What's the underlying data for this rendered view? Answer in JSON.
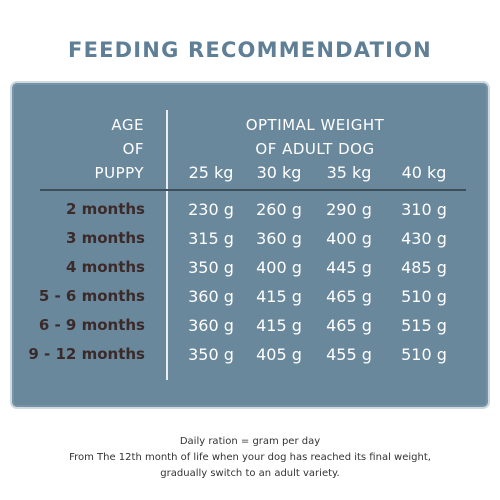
{
  "title": "FEEDING RECOMMENDATION",
  "header": {
    "age_lines": [
      "AGE",
      "OF",
      "PUPPY"
    ],
    "weight_lines": [
      "OPTIMAL WEIGHT",
      "OF ADULT DOG"
    ],
    "weights": [
      "25 kg",
      "30 kg",
      "35 kg",
      "40 kg"
    ]
  },
  "rows": [
    {
      "age": "2 months",
      "values": [
        "230 g",
        "260 g",
        "290 g",
        "310 g"
      ]
    },
    {
      "age": "3 months",
      "values": [
        "315 g",
        "360 g",
        "400 g",
        "430 g"
      ]
    },
    {
      "age": "4 months",
      "values": [
        "350 g",
        "400 g",
        "445 g",
        "485 g"
      ]
    },
    {
      "age": "5 - 6 months",
      "values": [
        "360 g",
        "415 g",
        "465 g",
        "510 g"
      ]
    },
    {
      "age": "6 - 9 months",
      "values": [
        "360 g",
        "415 g",
        "465 g",
        "515 g"
      ]
    },
    {
      "age": "9 - 12 months",
      "values": [
        "350 g",
        "405 g",
        "455 g",
        "510 g"
      ]
    }
  ],
  "footer": [
    "Daily ration = gram per day",
    "From The 12th month of life when your dog has reached its final weight,",
    "gradually switch to an adult variety."
  ],
  "colors": {
    "title": "#5f7f96",
    "panel": "#6a889c",
    "age_text": "#3b2a2a",
    "value_text": "#ffffff"
  }
}
